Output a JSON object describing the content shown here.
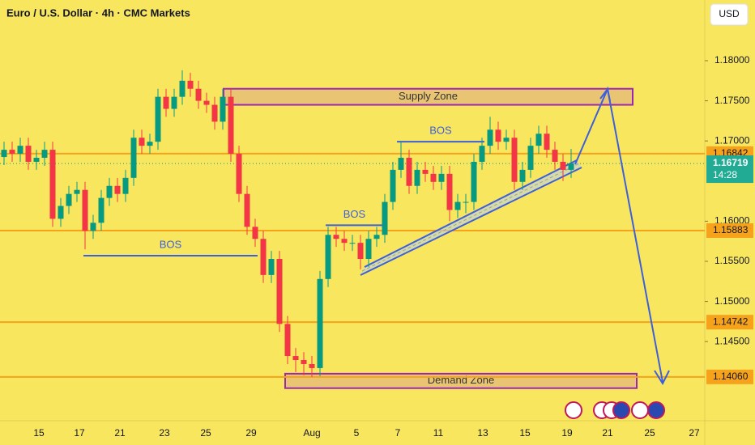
{
  "header": {
    "title": "Euro / U.S. Dollar · 4h · CMC Markets",
    "currency": "USD"
  },
  "chart_data": {
    "type": "candlestick",
    "ylim": [
      1.13514,
      1.18756
    ],
    "yticks": [
      {
        "value": 1.18,
        "label": "1.18000"
      },
      {
        "value": 1.175,
        "label": "1.17500"
      },
      {
        "value": 1.17,
        "label": "1.17000"
      },
      {
        "value": 1.16,
        "label": "1.16000"
      },
      {
        "value": 1.155,
        "label": "1.15500"
      },
      {
        "value": 1.15,
        "label": "1.15000"
      },
      {
        "value": 1.145,
        "label": "1.14500"
      }
    ],
    "xticks": [
      "15",
      "17",
      "21",
      "23",
      "25",
      "29",
      "Aug",
      "5",
      "7",
      "11",
      "13",
      "15",
      "19",
      "21",
      "25",
      "27"
    ],
    "up_color": "#089981",
    "down_color": "#f23645",
    "candles": [
      [
        1.168,
        1.1699,
        1.167,
        1.1689
      ],
      [
        1.1689,
        1.1699,
        1.1674,
        1.1684
      ],
      [
        1.1684,
        1.1704,
        1.1674,
        1.1694
      ],
      [
        1.1694,
        1.1704,
        1.1664,
        1.1674
      ],
      [
        1.1674,
        1.1689,
        1.1664,
        1.1679
      ],
      [
        1.1679,
        1.1699,
        1.1669,
        1.1689
      ],
      [
        1.1689,
        1.1699,
        1.1593,
        1.1603
      ],
      [
        1.1603,
        1.1629,
        1.1593,
        1.1619
      ],
      [
        1.1619,
        1.1644,
        1.1609,
        1.1634
      ],
      [
        1.1634,
        1.1649,
        1.1624,
        1.1639
      ],
      [
        1.1639,
        1.1649,
        1.1565,
        1.1588
      ],
      [
        1.1588,
        1.1608,
        1.1578,
        1.1598
      ],
      [
        1.1598,
        1.1639,
        1.1588,
        1.1629
      ],
      [
        1.1629,
        1.1654,
        1.1619,
        1.1644
      ],
      [
        1.1644,
        1.1654,
        1.1624,
        1.1634
      ],
      [
        1.1634,
        1.1664,
        1.1624,
        1.1654
      ],
      [
        1.1654,
        1.1714,
        1.1644,
        1.1704
      ],
      [
        1.1704,
        1.1714,
        1.1684,
        1.1694
      ],
      [
        1.1694,
        1.1709,
        1.1684,
        1.1699
      ],
      [
        1.1699,
        1.1765,
        1.1689,
        1.1755
      ],
      [
        1.1755,
        1.1765,
        1.173,
        1.174
      ],
      [
        1.174,
        1.1765,
        1.173,
        1.1755
      ],
      [
        1.1755,
        1.1788,
        1.1745,
        1.1775
      ],
      [
        1.1775,
        1.1785,
        1.1755,
        1.1765
      ],
      [
        1.1765,
        1.1775,
        1.174,
        1.175
      ],
      [
        1.175,
        1.176,
        1.1735,
        1.1745
      ],
      [
        1.1745,
        1.1755,
        1.1714,
        1.1724
      ],
      [
        1.1724,
        1.1765,
        1.1714,
        1.1755
      ],
      [
        1.1755,
        1.1765,
        1.1674,
        1.1684
      ],
      [
        1.1684,
        1.1694,
        1.1624,
        1.1634
      ],
      [
        1.1634,
        1.1644,
        1.1583,
        1.1593
      ],
      [
        1.1593,
        1.1603,
        1.1568,
        1.1578
      ],
      [
        1.1578,
        1.1588,
        1.1523,
        1.1533
      ],
      [
        1.1533,
        1.1563,
        1.1523,
        1.1553
      ],
      [
        1.1553,
        1.1563,
        1.1462,
        1.1472
      ],
      [
        1.1472,
        1.1482,
        1.1422,
        1.1432
      ],
      [
        1.1432,
        1.1442,
        1.1412,
        1.1427
      ],
      [
        1.1427,
        1.1437,
        1.1408,
        1.1422
      ],
      [
        1.1422,
        1.1432,
        1.1406,
        1.1417
      ],
      [
        1.1417,
        1.1538,
        1.1407,
        1.1528
      ],
      [
        1.1528,
        1.1593,
        1.1518,
        1.1583
      ],
      [
        1.1583,
        1.1593,
        1.1568,
        1.1578
      ],
      [
        1.1578,
        1.1588,
        1.1563,
        1.1573
      ],
      [
        1.1573,
        1.1583,
        1.1563,
        1.1573
      ],
      [
        1.1573,
        1.1583,
        1.154,
        1.1553
      ],
      [
        1.1553,
        1.1588,
        1.1543,
        1.1578
      ],
      [
        1.1578,
        1.1593,
        1.1568,
        1.1583
      ],
      [
        1.1583,
        1.1634,
        1.1573,
        1.1624
      ],
      [
        1.1624,
        1.1674,
        1.1614,
        1.1664
      ],
      [
        1.1664,
        1.1699,
        1.1654,
        1.1679
      ],
      [
        1.1679,
        1.1689,
        1.1634,
        1.1644
      ],
      [
        1.1644,
        1.1674,
        1.1634,
        1.1664
      ],
      [
        1.1664,
        1.1674,
        1.1649,
        1.1659
      ],
      [
        1.1659,
        1.1669,
        1.1639,
        1.1649
      ],
      [
        1.1649,
        1.1669,
        1.1639,
        1.1659
      ],
      [
        1.1659,
        1.1669,
        1.16,
        1.1614
      ],
      [
        1.1614,
        1.1634,
        1.1604,
        1.1624
      ],
      [
        1.1624,
        1.1634,
        1.161,
        1.1624
      ],
      [
        1.1624,
        1.1684,
        1.1614,
        1.1674
      ],
      [
        1.1674,
        1.1704,
        1.1664,
        1.1694
      ],
      [
        1.1694,
        1.173,
        1.1684,
        1.1714
      ],
      [
        1.1714,
        1.1724,
        1.1689,
        1.1699
      ],
      [
        1.1699,
        1.1714,
        1.1689,
        1.1704
      ],
      [
        1.1704,
        1.1714,
        1.1639,
        1.1649
      ],
      [
        1.1649,
        1.1674,
        1.1639,
        1.1664
      ],
      [
        1.1664,
        1.1704,
        1.1654,
        1.1694
      ],
      [
        1.1694,
        1.1719,
        1.1684,
        1.1709
      ],
      [
        1.1709,
        1.1719,
        1.1679,
        1.1689
      ],
      [
        1.1689,
        1.1699,
        1.1664,
        1.1674
      ],
      [
        1.1674,
        1.1684,
        1.165,
        1.1664
      ],
      [
        1.1664,
        1.169,
        1.1654,
        1.16719
      ]
    ],
    "levels": [
      1.16842,
      1.15883,
      1.14742,
      {
        "value": 1.1406,
        "label": "1.14060"
      }
    ],
    "last_price": {
      "value": 1.16719,
      "countdown": "14:28"
    },
    "zones": [
      {
        "label": "Supply Zone",
        "range": [
          1.1745,
          1.1765
        ]
      },
      {
        "label": "Demand Zone",
        "range": [
          1.1392,
          1.141
        ]
      }
    ],
    "bos": [
      {
        "label": "BOS",
        "value": 1.1557
      },
      {
        "label": "BOS",
        "value": 1.1595
      },
      {
        "label": "BOS",
        "value": 1.1699
      }
    ]
  }
}
